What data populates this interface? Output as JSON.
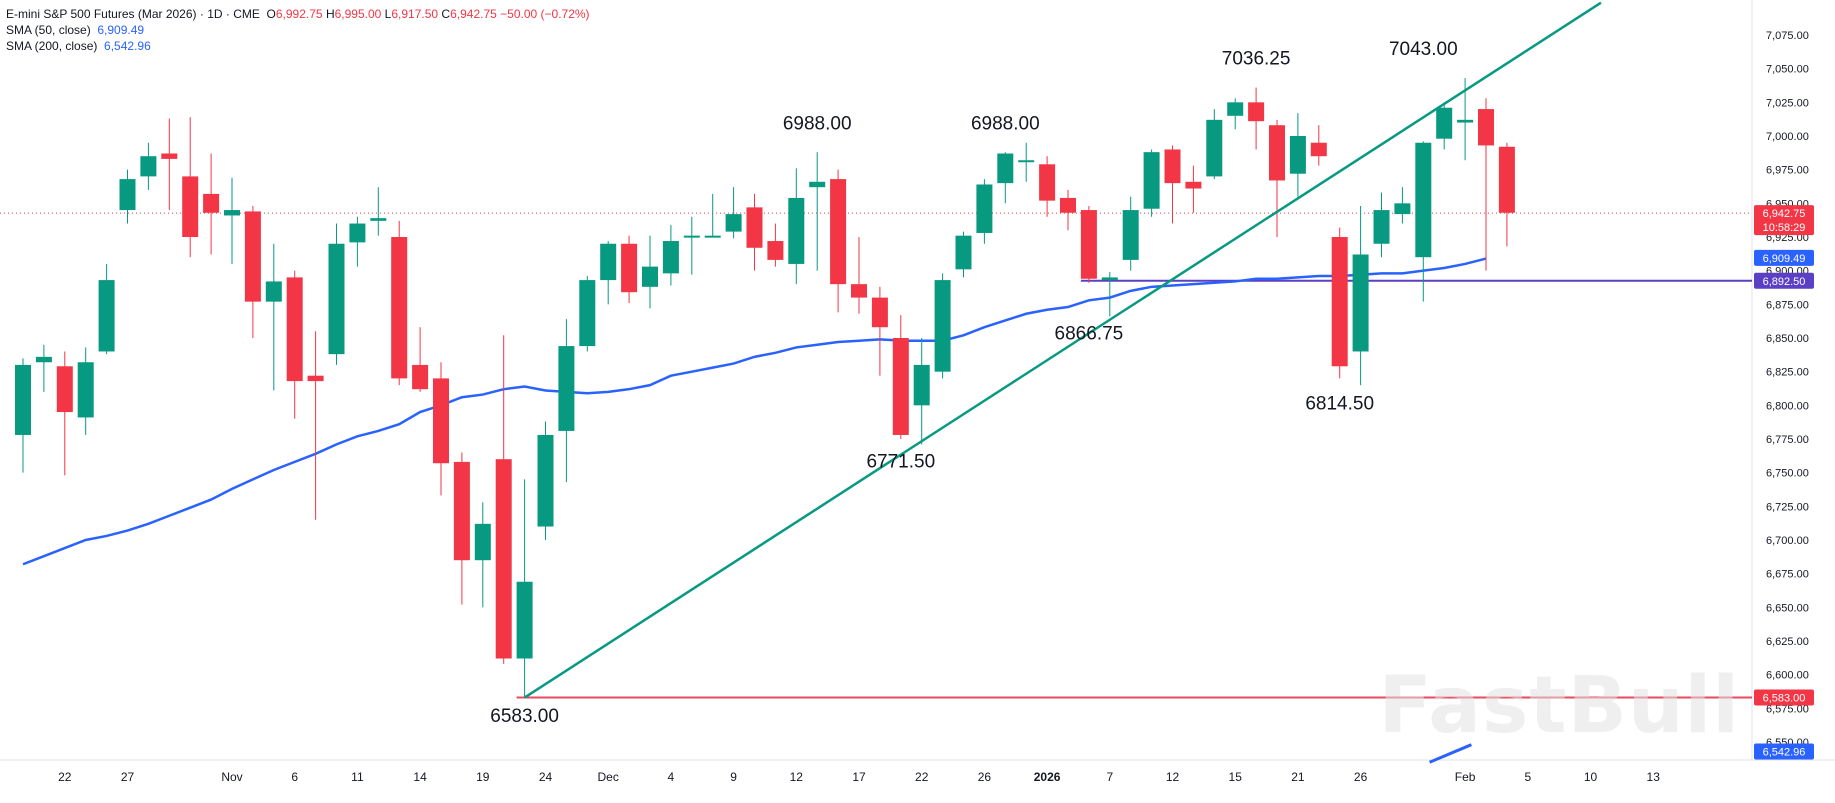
{
  "header": {
    "symbol": "E-mini S&P 500 Futures (Mar 2026) · 1D · CME",
    "ohlc": {
      "o_label": "O",
      "o": "6,992.75",
      "h_label": "H",
      "h": "6,995.00",
      "l_label": "L",
      "l": "6,917.50",
      "c_label": "C",
      "c": "6,942.75",
      "change": "−50.00 (−0.72%)"
    },
    "sma50": {
      "label": "SMA (50, close)",
      "value": "6,909.49"
    },
    "sma200": {
      "label": "SMA (200, close)",
      "value": "6,542.96"
    }
  },
  "watermark": "FastBull",
  "chart_data": {
    "type": "candlestick",
    "ylim": [
      6525,
      7090
    ],
    "y_ticks": [
      6550,
      6575,
      6600,
      6625,
      6650,
      6675,
      6700,
      6725,
      6750,
      6775,
      6800,
      6825,
      6850,
      6875,
      6900,
      6925,
      6950,
      6975,
      7000,
      7025,
      7050,
      7075
    ],
    "x_labels": [
      {
        "label": "22",
        "i": 2
      },
      {
        "label": "27",
        "i": 5
      },
      {
        "label": "Nov",
        "i": 10
      },
      {
        "label": "6",
        "i": 13
      },
      {
        "label": "11",
        "i": 16
      },
      {
        "label": "14",
        "i": 19
      },
      {
        "label": "19",
        "i": 22
      },
      {
        "label": "24",
        "i": 25
      },
      {
        "label": "Dec",
        "i": 28
      },
      {
        "label": "4",
        "i": 31
      },
      {
        "label": "9",
        "i": 34
      },
      {
        "label": "12",
        "i": 37
      },
      {
        "label": "17",
        "i": 40
      },
      {
        "label": "22",
        "i": 43
      },
      {
        "label": "26",
        "i": 46
      },
      {
        "label": "2026",
        "i": 49
      },
      {
        "label": "7",
        "i": 52
      },
      {
        "label": "12",
        "i": 55
      },
      {
        "label": "15",
        "i": 58
      },
      {
        "label": "21",
        "i": 61
      },
      {
        "label": "26",
        "i": 64
      },
      {
        "label": "Feb",
        "i": 69
      },
      {
        "label": "5",
        "i": 72
      },
      {
        "label": "10",
        "i": 75
      },
      {
        "label": "13",
        "i": 78
      }
    ],
    "candles": [
      {
        "o": 6778,
        "h": 6835,
        "l": 6750,
        "c": 6830
      },
      {
        "o": 6832,
        "h": 6845,
        "l": 6810,
        "c": 6836
      },
      {
        "o": 6829,
        "h": 6840,
        "l": 6748,
        "c": 6795
      },
      {
        "o": 6791,
        "h": 6843,
        "l": 6778,
        "c": 6832
      },
      {
        "o": 6840,
        "h": 6905,
        "l": 6838,
        "c": 6893
      },
      {
        "o": 6945,
        "h": 6975,
        "l": 6935,
        "c": 6968
      },
      {
        "o": 6970,
        "h": 6995,
        "l": 6960,
        "c": 6985
      },
      {
        "o": 6987,
        "h": 7013,
        "l": 6945,
        "c": 6983
      },
      {
        "o": 6970,
        "h": 7014,
        "l": 6910,
        "c": 6925
      },
      {
        "o": 6957,
        "h": 6987,
        "l": 6912,
        "c": 6943
      },
      {
        "o": 6941,
        "h": 6969,
        "l": 6905,
        "c": 6945
      },
      {
        "o": 6944,
        "h": 6948,
        "l": 6850,
        "c": 6877
      },
      {
        "o": 6877,
        "h": 6920,
        "l": 6811,
        "c": 6892
      },
      {
        "o": 6895,
        "h": 6900,
        "l": 6790,
        "c": 6818
      },
      {
        "o": 6822,
        "h": 6855,
        "l": 6715,
        "c": 6818
      },
      {
        "o": 6838,
        "h": 6935,
        "l": 6830,
        "c": 6920
      },
      {
        "o": 6921,
        "h": 6940,
        "l": 6903,
        "c": 6935
      },
      {
        "o": 6937,
        "h": 6962,
        "l": 6926,
        "c": 6939
      },
      {
        "o": 6925,
        "h": 6937,
        "l": 6815,
        "c": 6820
      },
      {
        "o": 6830,
        "h": 6858,
        "l": 6810,
        "c": 6812
      },
      {
        "o": 6820,
        "h": 6832,
        "l": 6733,
        "c": 6757
      },
      {
        "o": 6758,
        "h": 6765,
        "l": 6652,
        "c": 6685
      },
      {
        "o": 6685,
        "h": 6728,
        "l": 6650,
        "c": 6712
      },
      {
        "o": 6760,
        "h": 6852,
        "l": 6608,
        "c": 6612
      },
      {
        "o": 6612,
        "h": 6745,
        "l": 6583,
        "c": 6669
      },
      {
        "o": 6710,
        "h": 6788,
        "l": 6700,
        "c": 6778
      },
      {
        "o": 6781,
        "h": 6864,
        "l": 6743,
        "c": 6844
      },
      {
        "o": 6844,
        "h": 6896,
        "l": 6840,
        "c": 6893
      },
      {
        "o": 6893,
        "h": 6922,
        "l": 6875,
        "c": 6920
      },
      {
        "o": 6920,
        "h": 6926,
        "l": 6876,
        "c": 6884
      },
      {
        "o": 6888,
        "h": 6926,
        "l": 6872,
        "c": 6903
      },
      {
        "o": 6898,
        "h": 6934,
        "l": 6889,
        "c": 6922
      },
      {
        "o": 6925,
        "h": 6940,
        "l": 6897,
        "c": 6926
      },
      {
        "o": 6925,
        "h": 6957,
        "l": 6925,
        "c": 6926
      },
      {
        "o": 6929,
        "h": 6962,
        "l": 6924,
        "c": 6942
      },
      {
        "o": 6947,
        "h": 6957,
        "l": 6900,
        "c": 6917
      },
      {
        "o": 6922,
        "h": 6935,
        "l": 6903,
        "c": 6908
      },
      {
        "o": 6905,
        "h": 6976,
        "l": 6890,
        "c": 6954
      },
      {
        "o": 6962,
        "h": 6988,
        "l": 6900,
        "c": 6966
      },
      {
        "o": 6968,
        "h": 6975,
        "l": 6869,
        "c": 6890
      },
      {
        "o": 6890,
        "h": 6925,
        "l": 6868,
        "c": 6880
      },
      {
        "o": 6880,
        "h": 6888,
        "l": 6822,
        "c": 6858
      },
      {
        "o": 6850,
        "h": 6867,
        "l": 6775,
        "c": 6778
      },
      {
        "o": 6800,
        "h": 6850,
        "l": 6771,
        "c": 6830
      },
      {
        "o": 6825,
        "h": 6898,
        "l": 6820,
        "c": 6893
      },
      {
        "o": 6901,
        "h": 6929,
        "l": 6895,
        "c": 6926
      },
      {
        "o": 6928,
        "h": 6968,
        "l": 6920,
        "c": 6964
      },
      {
        "o": 6965,
        "h": 6988,
        "l": 6950,
        "c": 6987
      },
      {
        "o": 6982,
        "h": 6995,
        "l": 6966,
        "c": 6982
      },
      {
        "o": 6979,
        "h": 6985,
        "l": 6940,
        "c": 6952
      },
      {
        "o": 6954,
        "h": 6960,
        "l": 6930,
        "c": 6943
      },
      {
        "o": 6945,
        "h": 6948,
        "l": 6891,
        "c": 6894
      },
      {
        "o": 6893,
        "h": 6899,
        "l": 6866,
        "c": 6895
      },
      {
        "o": 6908,
        "h": 6955,
        "l": 6900,
        "c": 6945
      },
      {
        "o": 6946,
        "h": 6990,
        "l": 6940,
        "c": 6988
      },
      {
        "o": 6990,
        "h": 6993,
        "l": 6935,
        "c": 6965
      },
      {
        "o": 6966,
        "h": 6978,
        "l": 6943,
        "c": 6961
      },
      {
        "o": 6970,
        "h": 7020,
        "l": 6968,
        "c": 7012
      },
      {
        "o": 7015,
        "h": 7028,
        "l": 7005,
        "c": 7025
      },
      {
        "o": 7025,
        "h": 7036,
        "l": 6990,
        "c": 7011
      },
      {
        "o": 7008,
        "h": 7012,
        "l": 6925,
        "c": 6967
      },
      {
        "o": 6972,
        "h": 7017,
        "l": 6955,
        "c": 7000
      },
      {
        "o": 6995,
        "h": 7008,
        "l": 6978,
        "c": 6985
      },
      {
        "o": 6925,
        "h": 6932,
        "l": 6820,
        "c": 6829
      },
      {
        "o": 6840,
        "h": 6948,
        "l": 6815,
        "c": 6912
      },
      {
        "o": 6920,
        "h": 6958,
        "l": 6910,
        "c": 6945
      },
      {
        "o": 6942,
        "h": 6962,
        "l": 6935,
        "c": 6950
      },
      {
        "o": 6910,
        "h": 6996,
        "l": 6877,
        "c": 6995
      },
      {
        "o": 6998,
        "h": 7025,
        "l": 6990,
        "c": 7021
      },
      {
        "o": 7010,
        "h": 7043,
        "l": 6982,
        "c": 7012
      },
      {
        "o": 7020,
        "h": 7028,
        "l": 6900,
        "c": 6993
      },
      {
        "o": 6992,
        "h": 6995,
        "l": 6918,
        "c": 6943
      }
    ],
    "sma50": [
      6682,
      6688,
      6694,
      6700,
      6703,
      6707,
      6712,
      6718,
      6724,
      6730,
      6738,
      6745,
      6752,
      6758,
      6764,
      6771,
      6777,
      6781,
      6786,
      6795,
      6800,
      6806,
      6808,
      6812,
      6814,
      6811,
      6810,
      6809,
      6810,
      6812,
      6815,
      6822,
      6825,
      6828,
      6831,
      6836,
      6839,
      6843,
      6845,
      6847,
      6848,
      6849,
      6848,
      6848,
      6848,
      6852,
      6858,
      6863,
      6868,
      6871,
      6873,
      6878,
      6880,
      6885,
      6888,
      6889,
      6890,
      6891,
      6892,
      6894,
      6894,
      6895,
      6896,
      6896,
      6897,
      6898,
      6898,
      6900,
      6902,
      6905,
      6909
    ],
    "levels": [
      {
        "value": 6892.5,
        "label": "6,892.50",
        "color": "#5b3fc4",
        "from_index": 51
      },
      {
        "value": 6583.0,
        "label": "6,583.00",
        "color": "#e84a5f",
        "from_index": 24
      }
    ],
    "trendline": {
      "from": {
        "i": 24,
        "v": 6583
      },
      "to": {
        "i": 75.5,
        "v": 7099
      },
      "color": "#089981"
    },
    "annotations": [
      {
        "text": "6583.00",
        "i": 24,
        "v": 6565
      },
      {
        "text": "6988.00",
        "i": 38,
        "v": 7005
      },
      {
        "text": "6771.50",
        "i": 42,
        "v": 6754
      },
      {
        "text": "6988.00",
        "i": 47,
        "v": 7005
      },
      {
        "text": "6866.75",
        "i": 51,
        "v": 6849
      },
      {
        "text": "7036.25",
        "i": 59,
        "v": 7053
      },
      {
        "text": "6814.50",
        "i": 63,
        "v": 6797
      },
      {
        "text": "7043.00",
        "i": 67,
        "v": 7060
      }
    ],
    "price_tags": [
      {
        "label": "6,942.75",
        "sub": "10:58:29",
        "value": 6942.75,
        "color": "#f23645"
      },
      {
        "label": "6,909.49",
        "value": 6909.49,
        "color": "#2962ff"
      },
      {
        "label": "6,892.50",
        "value": 6892.5,
        "color": "#5b3fc4"
      },
      {
        "label": "6,583.00",
        "value": 6583.0,
        "color": "#f23645"
      },
      {
        "label": "6,542.96",
        "value": 6542.96,
        "color": "#2962ff"
      }
    ],
    "current_price": 6942.75,
    "colors": {
      "up": "#089981",
      "down": "#f23645",
      "sma": "#2962ff"
    }
  }
}
